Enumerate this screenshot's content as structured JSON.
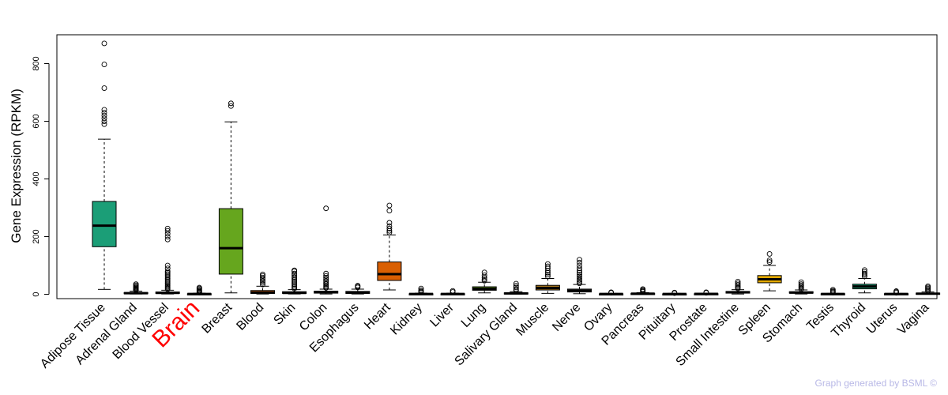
{
  "chart_data": {
    "type": "box",
    "title": "",
    "xlabel": "",
    "ylabel": "Gene Expression (RPKM)",
    "ylim": [
      -15,
      900
    ],
    "yticks": [
      0,
      200,
      400,
      600,
      800
    ],
    "grid": false,
    "legend": "none",
    "highlight_category": "Brain",
    "highlight_color": "#ff0000",
    "categories": [
      {
        "name": "Adipose Tissue",
        "color": "#1b9e77",
        "min": 17,
        "q1": 165,
        "median": 238,
        "q3": 322,
        "max": 538,
        "outliers": [
          590,
          600,
          610,
          620,
          630,
          640,
          715,
          797,
          870
        ]
      },
      {
        "name": "Adrenal Gland",
        "color": "#1b9e77",
        "min": 1,
        "q1": 3,
        "median": 4,
        "q3": 6,
        "max": 11,
        "outliers": [
          14,
          16,
          18,
          21,
          24,
          27,
          31,
          35
        ]
      },
      {
        "name": "Blood Vessel",
        "color": "#1b9e77",
        "min": 1,
        "q1": 3,
        "median": 5,
        "q3": 8,
        "max": 14,
        "outliers": [
          18,
          22,
          26,
          30,
          35,
          40,
          45,
          50,
          55,
          60,
          65,
          70,
          75,
          80,
          90,
          100,
          190,
          200,
          210,
          220,
          228
        ]
      },
      {
        "name": "Brain",
        "color": "#1b9e77",
        "min": 0,
        "q1": 0.5,
        "median": 1,
        "q3": 2,
        "max": 4,
        "outliers": [
          6,
          8,
          10,
          13,
          16,
          20,
          23
        ]
      },
      {
        "name": "Breast",
        "color": "#66a61e",
        "min": 5,
        "q1": 70,
        "median": 160,
        "q3": 297,
        "max": 598,
        "outliers": [
          653,
          662
        ]
      },
      {
        "name": "Blood",
        "color": "#d95f02",
        "min": 1,
        "q1": 3,
        "median": 6,
        "q3": 13,
        "max": 28,
        "outliers": [
          34,
          40,
          46,
          52,
          58,
          64,
          69
        ]
      },
      {
        "name": "Skin",
        "color": "#1b9e77",
        "min": 1,
        "q1": 3,
        "median": 5,
        "q3": 9,
        "max": 16,
        "outliers": [
          20,
          25,
          30,
          35,
          40,
          45,
          50,
          55,
          60,
          66,
          72,
          80,
          83
        ]
      },
      {
        "name": "Colon",
        "color": "#1b9e77",
        "min": 1,
        "q1": 4,
        "median": 7,
        "q3": 11,
        "max": 18,
        "outliers": [
          22,
          26,
          30,
          35,
          40,
          46,
          52,
          58,
          64,
          72,
          298
        ]
      },
      {
        "name": "Esophagus",
        "color": "#1b9e77",
        "min": 1,
        "q1": 3,
        "median": 6,
        "q3": 10,
        "max": 18,
        "outliers": [
          24,
          27,
          30
        ]
      },
      {
        "name": "Heart",
        "color": "#d95f02",
        "min": 15,
        "q1": 48,
        "median": 70,
        "q3": 112,
        "max": 206,
        "outliers": [
          214,
          220,
          228,
          236,
          248,
          290,
          308
        ]
      },
      {
        "name": "Kidney",
        "color": "#1b9e77",
        "min": 0,
        "q1": 0.5,
        "median": 1,
        "q3": 2,
        "max": 4,
        "outliers": [
          7,
          10,
          14,
          20
        ]
      },
      {
        "name": "Liver",
        "color": "#1b9e77",
        "min": 0,
        "q1": 0.5,
        "median": 1,
        "q3": 2,
        "max": 4,
        "outliers": [
          8,
          12
        ]
      },
      {
        "name": "Lung",
        "color": "#66a61e",
        "min": 5,
        "q1": 14,
        "median": 19,
        "q3": 26,
        "max": 42,
        "outliers": [
          47,
          52,
          58,
          66,
          76
        ]
      },
      {
        "name": "Salivary Gland",
        "color": "#1b9e77",
        "min": 1,
        "q1": 2,
        "median": 3,
        "q3": 5,
        "max": 9,
        "outliers": [
          13,
          18,
          24,
          30,
          37
        ]
      },
      {
        "name": "Muscle",
        "color": "#a6761d",
        "min": 3,
        "q1": 15,
        "median": 22,
        "q3": 31,
        "max": 55,
        "outliers": [
          62,
          68,
          75,
          82,
          90,
          97,
          105
        ]
      },
      {
        "name": "Nerve",
        "color": "#666666",
        "min": 2,
        "q1": 8,
        "median": 12,
        "q3": 18,
        "max": 34,
        "outliers": [
          38,
          44,
          50,
          56,
          62,
          68,
          75,
          82,
          90,
          100,
          110,
          120
        ]
      },
      {
        "name": "Ovary",
        "color": "#1b9e77",
        "min": 0,
        "q1": 0.5,
        "median": 1,
        "q3": 1.5,
        "max": 3,
        "outliers": [
          5,
          7
        ]
      },
      {
        "name": "Pancreas",
        "color": "#1b9e77",
        "min": 0,
        "q1": 1,
        "median": 2,
        "q3": 3,
        "max": 6,
        "outliers": [
          9,
          12,
          15,
          18
        ]
      },
      {
        "name": "Pituitary",
        "color": "#1b9e77",
        "min": 0,
        "q1": 0.5,
        "median": 1,
        "q3": 1.5,
        "max": 3,
        "outliers": [
          4,
          6
        ]
      },
      {
        "name": "Prostate",
        "color": "#1b9e77",
        "min": 0,
        "q1": 1,
        "median": 1.5,
        "q3": 2,
        "max": 4,
        "outliers": [
          5,
          7
        ]
      },
      {
        "name": "Small Intestine",
        "color": "#1b9e77",
        "min": 1,
        "q1": 4,
        "median": 7,
        "q3": 10,
        "max": 16,
        "outliers": [
          20,
          24,
          28,
          33,
          38,
          44
        ]
      },
      {
        "name": "Spleen",
        "color": "#e6ab02",
        "min": 12,
        "q1": 40,
        "median": 52,
        "q3": 65,
        "max": 100,
        "outliers": [
          112,
          118,
          140
        ]
      },
      {
        "name": "Stomach",
        "color": "#1b9e77",
        "min": 1,
        "q1": 4,
        "median": 6,
        "q3": 9,
        "max": 15,
        "outliers": [
          18,
          22,
          26,
          30,
          35,
          42
        ]
      },
      {
        "name": "Testis",
        "color": "#1b9e77",
        "min": 0,
        "q1": 0.5,
        "median": 1,
        "q3": 2,
        "max": 3,
        "outliers": [
          6,
          9,
          12,
          16
        ]
      },
      {
        "name": "Thyroid",
        "color": "#1b9e77",
        "min": 5,
        "q1": 19,
        "median": 27,
        "q3": 35,
        "max": 55,
        "outliers": [
          62,
          67,
          72,
          78,
          84
        ]
      },
      {
        "name": "Uterus",
        "color": "#1b9e77",
        "min": 0,
        "q1": 0.5,
        "median": 1,
        "q3": 2,
        "max": 3,
        "outliers": [
          5,
          8,
          11
        ]
      },
      {
        "name": "Vagina",
        "color": "#1b9e77",
        "min": 0,
        "q1": 1,
        "median": 2,
        "q3": 4,
        "max": 8,
        "outliers": [
          12,
          16,
          20,
          24,
          28
        ]
      }
    ]
  },
  "footer": {
    "credit": "Graph generated by BSML ©"
  }
}
